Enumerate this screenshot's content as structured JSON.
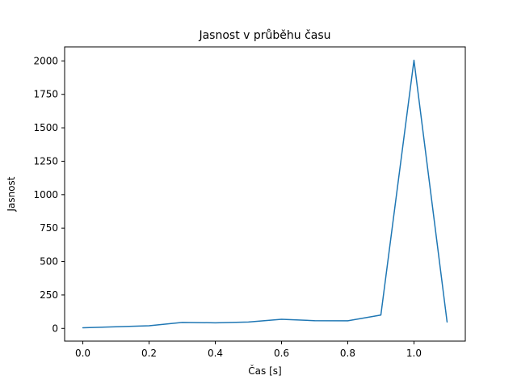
{
  "chart_data": {
    "type": "line",
    "title": "Jasnost v průběhu času",
    "xlabel": "Čas [s]",
    "ylabel": "Jasnost",
    "x": [
      0.0,
      0.1,
      0.2,
      0.3,
      0.4,
      0.5,
      0.6,
      0.7,
      0.8,
      0.9,
      1.0,
      1.1
    ],
    "y": [
      5,
      12,
      20,
      45,
      42,
      48,
      68,
      58,
      57,
      100,
      2005,
      48
    ],
    "xlim": [
      -0.055,
      1.155
    ],
    "ylim": [
      -95,
      2105
    ],
    "xticks": [
      0.0,
      0.2,
      0.4,
      0.6,
      0.8,
      1.0
    ],
    "yticks": [
      0,
      250,
      500,
      750,
      1000,
      1250,
      1500,
      1750,
      2000
    ],
    "line_color": "#1f77b4",
    "axis_color": "#000000",
    "background_color": "#ffffff",
    "grid": false,
    "legend": "none"
  }
}
